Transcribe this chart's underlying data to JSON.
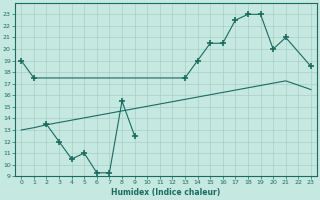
{
  "xlabel": "Humidex (Indice chaleur)",
  "ylabel": "",
  "background_color": "#c5e8e0",
  "grid_color": "#a8cfc8",
  "line_color": "#1a6b60",
  "xlim": [
    -0.5,
    23.5
  ],
  "ylim": [
    9,
    24
  ],
  "xticks": [
    0,
    1,
    2,
    3,
    4,
    5,
    6,
    7,
    8,
    9,
    10,
    11,
    12,
    13,
    14,
    15,
    16,
    17,
    18,
    19,
    20,
    21,
    22,
    23
  ],
  "yticks": [
    9,
    10,
    11,
    12,
    13,
    14,
    15,
    16,
    17,
    18,
    19,
    20,
    21,
    22,
    23
  ],
  "curve1_x": [
    0,
    1,
    13,
    14,
    15,
    16,
    17,
    18,
    19,
    20,
    21,
    23
  ],
  "curve1_y": [
    19.0,
    17.5,
    17.5,
    19.0,
    20.5,
    20.5,
    22.5,
    23.0,
    23.0,
    20.0,
    21.0,
    18.5
  ],
  "curve2_x": [
    2,
    3,
    4,
    5,
    6,
    7,
    8,
    9
  ],
  "curve2_y": [
    13.5,
    12.0,
    10.5,
    11.0,
    9.3,
    9.3,
    15.5,
    12.5
  ],
  "curve3_x": [
    0,
    1,
    2,
    3,
    4,
    5,
    6,
    7,
    8,
    9,
    10,
    11,
    12,
    13,
    14,
    15,
    16,
    17,
    18,
    19,
    20,
    21,
    23
  ],
  "curve3_y": [
    13.0,
    13.2,
    13.45,
    13.65,
    13.85,
    14.05,
    14.25,
    14.45,
    14.65,
    14.85,
    15.05,
    15.25,
    15.45,
    15.65,
    15.85,
    16.05,
    16.25,
    16.45,
    16.65,
    16.85,
    17.05,
    17.25,
    16.5
  ]
}
